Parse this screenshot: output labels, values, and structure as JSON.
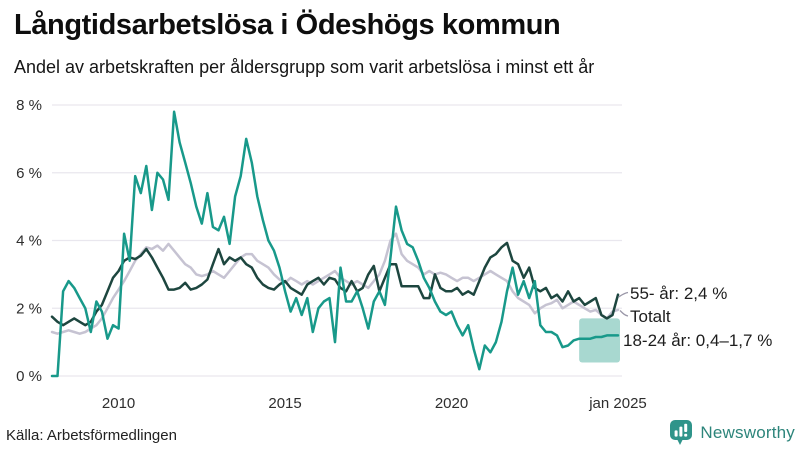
{
  "header": {
    "title": "Långtidsarbetslösa i Ödeshögs kommun",
    "subtitle": "Andel av arbetskraften per åldersgrupp som varit arbetslösa i minst ett år"
  },
  "footer": {
    "source": "Källa: Arbetsförmedlingen",
    "brand": "Newsworthy"
  },
  "colors": {
    "teal_line": "#18998a",
    "dark_line": "#1d463f",
    "total_line": "#c6c3d2",
    "band_fill": "#a8d8d0",
    "gridline": "#e9e7ee",
    "tick_text": "#2e2e2e",
    "annotation_text": "#1d1d1d",
    "connector": "#9a97a8",
    "brand_teal": "#2d857b"
  },
  "chart_data": {
    "type": "line",
    "title": "Långtidsarbetslösa i Ödeshögs kommun",
    "subtitle": "Andel av arbetskraften per åldersgrupp som varit arbetslösa i minst ett år",
    "xlabel": "",
    "ylabel": "",
    "x_start_year": 2008,
    "x_end_year": 2025,
    "points_per_year": 6,
    "ylim": [
      0,
      8
    ],
    "grid": true,
    "y_ticks": [
      {
        "value": 0,
        "label": "0 %"
      },
      {
        "value": 2,
        "label": "2 %"
      },
      {
        "value": 4,
        "label": "4 %"
      },
      {
        "value": 6,
        "label": "6 %"
      },
      {
        "value": 8,
        "label": "8 %"
      }
    ],
    "x_ticks": [
      {
        "year": 2010,
        "label": "2010"
      },
      {
        "year": 2015,
        "label": "2015"
      },
      {
        "year": 2020,
        "label": "2020"
      },
      {
        "year": 2025,
        "label": "jan 2025"
      }
    ],
    "series": [
      {
        "name": "Totalt",
        "annotation": "Totalt",
        "color": "#c6c3d2",
        "values": [
          1.3,
          1.25,
          1.3,
          1.35,
          1.3,
          1.25,
          1.3,
          1.4,
          1.5,
          1.7,
          2,
          2.3,
          2.55,
          2.8,
          3.1,
          3.4,
          3.6,
          3.8,
          3.75,
          3.85,
          3.7,
          3.9,
          3.7,
          3.5,
          3.3,
          3.2,
          3,
          2.95,
          3,
          3.1,
          3,
          2.9,
          3.1,
          3.3,
          3.5,
          3.6,
          3.6,
          3.4,
          3.3,
          3.2,
          3,
          2.85,
          2.75,
          2.9,
          2.8,
          2.7,
          2.8,
          2.7,
          2.8,
          2.9,
          3,
          3.1,
          2.9,
          2.8,
          2.7,
          2.8,
          2.7,
          2.6,
          2.8,
          3,
          3.4,
          4,
          4.2,
          3.6,
          3.4,
          3.3,
          3.2,
          3,
          3.1,
          3,
          3.05,
          3,
          2.9,
          2.8,
          2.9,
          2.9,
          2.8,
          2.9,
          3,
          3.1,
          3,
          2.9,
          2.8,
          2.5,
          2.3,
          2.2,
          2.1,
          1.85,
          2,
          2.1,
          2.15,
          2.25,
          2,
          2.1,
          2.2,
          2.1,
          2,
          1.9,
          1.95,
          1.8,
          1.7,
          1.9,
          1.95
        ]
      },
      {
        "name": "55- år",
        "annotation": "55- år: 2,4 %",
        "color": "#1d463f",
        "values": [
          1.75,
          1.6,
          1.5,
          1.6,
          1.7,
          1.6,
          1.5,
          1.6,
          1.9,
          2.1,
          2.5,
          2.9,
          3.1,
          3.4,
          3.5,
          3.45,
          3.55,
          3.75,
          3.5,
          3.2,
          2.9,
          2.55,
          2.55,
          2.6,
          2.75,
          2.55,
          2.6,
          2.7,
          2.85,
          3.3,
          3.75,
          3.3,
          3.5,
          3.4,
          3.5,
          3.3,
          3.2,
          2.9,
          2.7,
          2.6,
          2.55,
          2.7,
          2.8,
          2.6,
          2.5,
          2.4,
          2.7,
          2.8,
          2.9,
          2.7,
          2.9,
          2.85,
          2.6,
          2.5,
          2.8,
          2.5,
          2.6,
          3,
          3.25,
          2.5,
          2.9,
          3.3,
          3.3,
          2.65,
          2.65,
          2.65,
          2.65,
          2.3,
          2.3,
          3,
          2.6,
          2.5,
          2.5,
          2.6,
          2.4,
          2.5,
          2.4,
          2.8,
          3.2,
          3.5,
          3.6,
          3.8,
          3.93,
          3.4,
          3.3,
          2.9,
          3.2,
          2.6,
          2.5,
          2.6,
          2.3,
          2.4,
          2.2,
          2.5,
          2.2,
          2.3,
          2.1,
          2.2,
          2.3,
          1.8,
          1.7,
          1.8,
          2.4
        ]
      },
      {
        "name": "18-24 år",
        "annotation": "18-24 år: 0,4–1,7 %",
        "color": "#18998a",
        "band": {
          "from_index": 95,
          "low": 0.4,
          "high": 1.7,
          "color": "#a8d8d0"
        },
        "values": [
          0,
          0,
          2.5,
          2.8,
          2.6,
          2.3,
          2,
          1.3,
          2.2,
          1.9,
          1.1,
          1.5,
          1.4,
          4.2,
          3.4,
          5.9,
          5.4,
          6.2,
          4.9,
          6,
          5.8,
          5.2,
          7.8,
          6.9,
          6.3,
          5.7,
          5,
          4.5,
          5.4,
          4.4,
          4.3,
          4.7,
          3.9,
          5.3,
          5.9,
          7,
          6.3,
          5.3,
          4.6,
          4,
          3.7,
          3.2,
          2.5,
          1.9,
          2.3,
          1.8,
          2.3,
          1.3,
          2,
          2.2,
          2.3,
          1,
          3.2,
          2.2,
          2.2,
          2.5,
          2,
          1.4,
          2.2,
          2.5,
          2.1,
          3.5,
          5,
          4.3,
          3.9,
          3.8,
          3.4,
          2.9,
          2.6,
          2.2,
          1.9,
          1.8,
          1.9,
          1.5,
          1.2,
          1.5,
          0.8,
          0.2,
          0.9,
          0.7,
          1,
          1.6,
          2.5,
          3.2,
          2.4,
          2.8,
          2.3,
          2.8,
          1.5,
          1.3,
          1.3,
          1.2,
          0.85,
          0.9,
          1.05,
          1.1,
          1.1,
          1.1,
          1.15,
          1.15,
          1.2,
          1.2,
          1.2
        ]
      }
    ],
    "legend_position": "end-of-line-labels",
    "annotation_labels": [
      "55- år: 2,4 %",
      "Totalt",
      "18-24 år: 0,4–1,7 %"
    ]
  }
}
